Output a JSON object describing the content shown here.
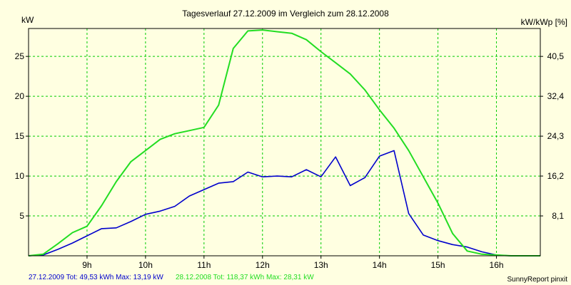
{
  "chart_data": {
    "type": "line",
    "title": "Tagesverlauf 27.12.2009 im Vergleich zum 28.12.2008",
    "ylabel_left": "kW",
    "ylabel_right": "kW/kWp [%]",
    "xlim": [
      8,
      16.75
    ],
    "ylim": [
      0,
      28.5
    ],
    "x_ticks": [
      9,
      10,
      11,
      12,
      13,
      14,
      15,
      16
    ],
    "x_tick_labels": [
      "9h",
      "10h",
      "11h",
      "12h",
      "13h",
      "14h",
      "15h",
      "16h"
    ],
    "y_ticks_left": [
      5,
      10,
      15,
      20,
      25
    ],
    "y_tick_labels_left": [
      "5",
      "10",
      "15",
      "20",
      "25"
    ],
    "y_ticks_right": [
      5,
      10,
      15,
      20,
      25
    ],
    "y_tick_labels_right": [
      "8,1",
      "16,2",
      "24,3",
      "32,4",
      "40,5"
    ],
    "grid": true,
    "background": "#ffffe1",
    "plot_background": "#ffffe1",
    "grid_color": "#00cc00",
    "series": [
      {
        "name": "27.12.2009",
        "color": "#0000cc",
        "summary": "27.12.2009 Tot: 49,53 kWh Max: 13,19 kW",
        "x": [
          8.0,
          8.25,
          8.5,
          8.75,
          9.0,
          9.25,
          9.5,
          9.75,
          10.0,
          10.25,
          10.5,
          10.75,
          11.0,
          11.25,
          11.5,
          11.75,
          12.0,
          12.25,
          12.5,
          12.75,
          13.0,
          13.25,
          13.5,
          13.75,
          14.0,
          14.25,
          14.5,
          14.75,
          15.0,
          15.25,
          15.5,
          15.75,
          16.0,
          16.25,
          16.5,
          16.75
        ],
        "y": [
          0,
          0.1,
          0.8,
          1.6,
          2.5,
          3.4,
          3.5,
          4.3,
          5.2,
          5.6,
          6.2,
          7.5,
          8.3,
          9.1,
          9.3,
          10.5,
          9.9,
          10.0,
          9.9,
          10.8,
          9.9,
          12.4,
          8.8,
          9.8,
          12.5,
          13.19,
          5.3,
          2.6,
          1.9,
          1.4,
          1.1,
          0.5,
          0.1,
          0,
          0,
          0
        ]
      },
      {
        "name": "28.12.2008",
        "color": "#22dd22",
        "summary": "28.12.2008 Tot: 118,37 kWh Max: 28,31 kW",
        "x": [
          8.0,
          8.25,
          8.5,
          8.75,
          9.0,
          9.25,
          9.5,
          9.75,
          10.0,
          10.25,
          10.5,
          10.75,
          11.0,
          11.25,
          11.5,
          11.75,
          12.0,
          12.25,
          12.5,
          12.75,
          13.0,
          13.25,
          13.5,
          13.75,
          14.0,
          14.25,
          14.5,
          14.75,
          15.0,
          15.25,
          15.5,
          15.75,
          16.0,
          16.25,
          16.5,
          16.75
        ],
        "y": [
          0,
          0.2,
          1.5,
          2.9,
          3.7,
          6.3,
          9.3,
          11.8,
          13.2,
          14.6,
          15.3,
          15.7,
          16.1,
          18.9,
          26.0,
          28.2,
          28.31,
          28.1,
          27.9,
          27.1,
          25.6,
          24.2,
          22.8,
          20.8,
          18.3,
          16.0,
          13.2,
          9.9,
          6.6,
          2.8,
          0.6,
          0.2,
          0.1,
          0,
          0,
          0
        ]
      }
    ],
    "legend": [
      {
        "text": "27.12.2009 Tot: 49,53 kWh Max: 13,19 kW",
        "color": "#0000cc"
      },
      {
        "text": "28.12.2008 Tot: 118,37 kWh Max: 28,31 kW",
        "color": "#22dd22"
      }
    ],
    "footer_right": "SunnyReport pinxit"
  }
}
